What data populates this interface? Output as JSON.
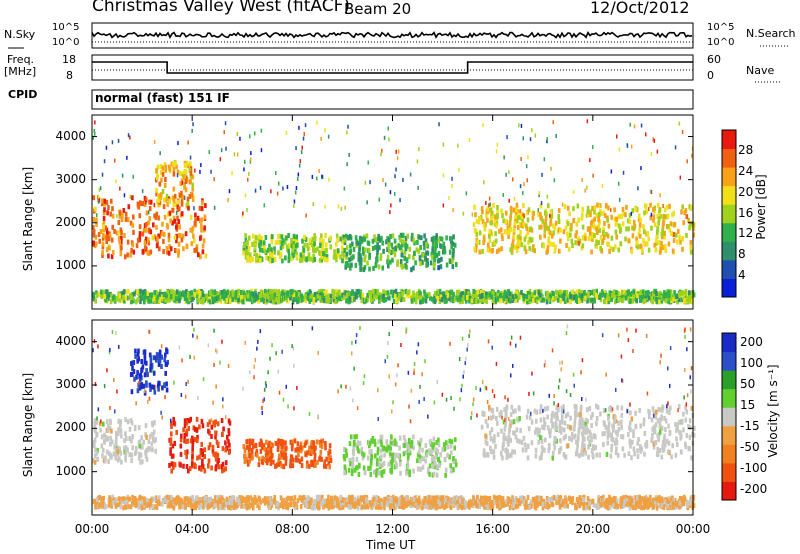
{
  "header": {
    "title": "Christmas Valley West (fitACF)",
    "beam": "Beam 20",
    "date": "12/Oct/2012"
  },
  "small_panels": {
    "nsky_label": "N.Sky",
    "nsky_ticks": [
      "10^5",
      "10^0"
    ],
    "nsearch_label": "N.Search",
    "nsearch_ticks": [
      "10^5",
      "10^0"
    ],
    "freq_label_1": "Freq.",
    "freq_label_2": "[MHz]",
    "freq_ticks": [
      "18",
      "8"
    ],
    "nave_label": "Nave",
    "nave_ticks": [
      "60",
      "0"
    ],
    "cpid_label": "CPID",
    "cpid_text": "normal (fast) 151 IF"
  },
  "colors": {
    "power_scale": [
      "#0a1fd8",
      "#1f4fb0",
      "#2d8f6b",
      "#2fb04a",
      "#9fd21c",
      "#f0e01a",
      "#f8a21a",
      "#f06010",
      "#e81a10"
    ],
    "velocity_scale": [
      "#1a2bc8",
      "#2a4fc8",
      "#2aa02a",
      "#60d030",
      "#c8c8c4",
      "#f0a040",
      "#f08020",
      "#f05010",
      "#e41a10"
    ]
  },
  "chart_data": [
    {
      "type": "heatmap",
      "name": "power",
      "ylabel": "Slant Range [km]",
      "yticks": [
        "1000",
        "2000",
        "3000",
        "4000"
      ],
      "ylim": [
        0,
        4500
      ],
      "xlim": [
        0,
        24
      ],
      "colorbar_label": "Power [dB]",
      "colorbar_ticks": [
        "4",
        "8",
        "12",
        "16",
        "20",
        "24",
        "28"
      ],
      "clim": [
        0,
        32
      ],
      "bands": [
        {
          "t": [
            0,
            4.5
          ],
          "range": [
            1200,
            2600
          ],
          "level": 26
        },
        {
          "t": [
            2.5,
            4
          ],
          "range": [
            2400,
            3400
          ],
          "level": 22
        },
        {
          "t": [
            6,
            10
          ],
          "range": [
            1100,
            1700
          ],
          "level": 16
        },
        {
          "t": [
            10,
            14.5
          ],
          "range": [
            900,
            1700
          ],
          "level": 12
        },
        {
          "t": [
            15.2,
            24
          ],
          "range": [
            1300,
            2400
          ],
          "level": 20
        },
        {
          "t": [
            0,
            24
          ],
          "range": [
            150,
            400
          ],
          "level": 14
        }
      ]
    },
    {
      "type": "heatmap",
      "name": "velocity",
      "ylabel": "Slant Range [km]",
      "yticks": [
        "1000",
        "2000",
        "3000",
        "4000"
      ],
      "ylim": [
        0,
        4500
      ],
      "xlim": [
        0,
        24
      ],
      "xlabel": "Time UT",
      "xticks": [
        "00:00",
        "04:00",
        "08:00",
        "12:00",
        "16:00",
        "20:00",
        "00:00"
      ],
      "colorbar_label": "Velocity [m s⁻¹]",
      "colorbar_ticks": [
        "200",
        "100",
        "50",
        "15",
        "-15",
        "-50",
        "-100",
        "-200"
      ],
      "clim": [
        -250,
        250
      ],
      "bands": [
        {
          "t": [
            0,
            2.5
          ],
          "range": [
            1200,
            2200
          ],
          "level": 0
        },
        {
          "t": [
            1.5,
            3
          ],
          "range": [
            2800,
            3800
          ],
          "level": 200
        },
        {
          "t": [
            3,
            5.5
          ],
          "range": [
            1000,
            2200
          ],
          "level": -200
        },
        {
          "t": [
            6,
            9.5
          ],
          "range": [
            1100,
            1700
          ],
          "level": -150
        },
        {
          "t": [
            10,
            14.5
          ],
          "range": [
            900,
            1800
          ],
          "level": 30
        },
        {
          "t": [
            15.5,
            24
          ],
          "range": [
            1300,
            2500
          ],
          "level": 0
        },
        {
          "t": [
            0,
            24
          ],
          "range": [
            150,
            400
          ],
          "level": -40
        }
      ]
    }
  ]
}
